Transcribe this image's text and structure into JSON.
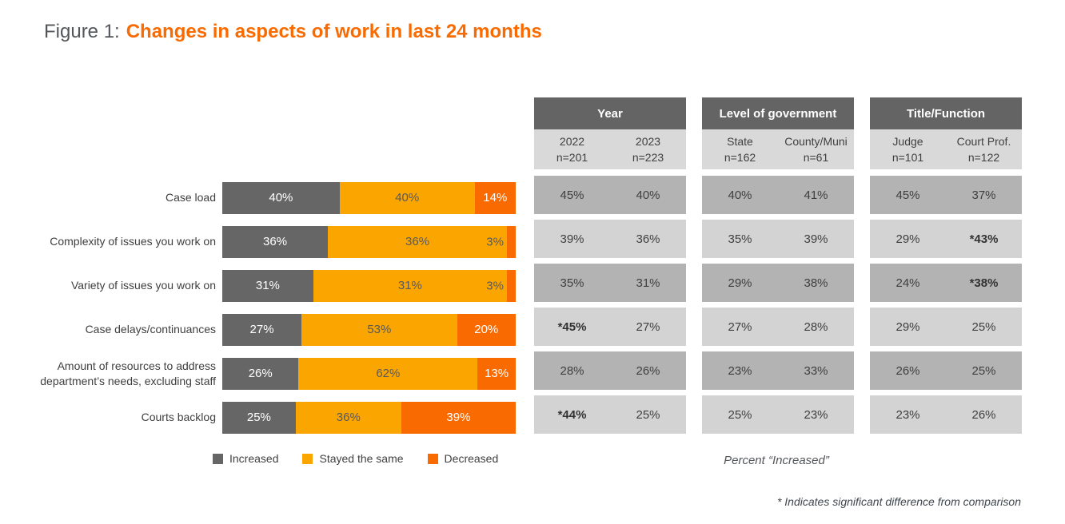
{
  "title": {
    "prefix": "Figure 1:",
    "text": "Changes in aspects of work in last 24 months"
  },
  "colors": {
    "increased": "#666666",
    "stayed": "#FBA600",
    "decreased": "#F96A00",
    "title_orange": "#F96A00",
    "header_band": "#646464",
    "row_dark": "#B3B3B3",
    "row_light": "#D3D3D3",
    "subheader": "#D9D9D9",
    "text_dark": "#3F3F3F",
    "figure_gray": "#53565A",
    "note_color": "#3E464D"
  },
  "chart": {
    "rows": [
      {
        "label": "Case load",
        "inc": "40%",
        "mid": "40%",
        "dec": "14%"
      },
      {
        "label": "Complexity of issues you work on",
        "inc": "36%",
        "mid": "36%",
        "dec": "3%"
      },
      {
        "label": "Variety of issues you work on",
        "inc": "31%",
        "mid": "31%",
        "dec": "3%"
      },
      {
        "label": "Case delays/continuances",
        "inc": "27%",
        "mid": "53%",
        "dec": "20%"
      },
      {
        "label": "Amount of resources to address department’s needs, excluding staff",
        "inc": "26%",
        "mid": "62%",
        "dec": "13%"
      },
      {
        "label": "Courts backlog",
        "inc": "25%",
        "mid": "36%",
        "dec": "39%"
      }
    ]
  },
  "chart_data": {
    "type": "bar",
    "orientation": "horizontal",
    "stacked": true,
    "title": "Figure 1: Changes in aspects of work in last 24 months",
    "value_unit": "%",
    "categories": [
      "Case load",
      "Complexity of issues you work on",
      "Variety of issues you work on",
      "Case delays/continuances",
      "Amount of resources to address department’s needs, excluding staff",
      "Courts backlog"
    ],
    "series": [
      {
        "name": "Increased",
        "color": "#666666",
        "values": [
          40,
          36,
          31,
          27,
          26,
          25
        ]
      },
      {
        "name": "Stayed the same",
        "color": "#FBA600",
        "values": [
          40,
          36,
          31,
          53,
          62,
          36
        ]
      },
      {
        "name": "Decreased",
        "color": "#F96A00",
        "values": [
          14,
          3,
          3,
          20,
          13,
          39
        ]
      }
    ],
    "legend_position": "bottom"
  },
  "tables": [
    {
      "title": "Year",
      "col1": {
        "name": "2022",
        "n": "n=201"
      },
      "col2": {
        "name": "2023",
        "n": "n=223"
      },
      "rows": [
        {
          "c1": "45%",
          "c2": "40%"
        },
        {
          "c1": "39%",
          "c2": "36%"
        },
        {
          "c1": "35%",
          "c2": "31%"
        },
        {
          "c1": "*45%",
          "c2": "27%"
        },
        {
          "c1": "28%",
          "c2": "26%"
        },
        {
          "c1": "*44%",
          "c2": "25%"
        }
      ]
    },
    {
      "title": "Level of government",
      "col1": {
        "name": "State",
        "n": "n=162"
      },
      "col2": {
        "name": "County/Muni",
        "n": "n=61"
      },
      "rows": [
        {
          "c1": "40%",
          "c2": "41%"
        },
        {
          "c1": "35%",
          "c2": "39%"
        },
        {
          "c1": "29%",
          "c2": "38%"
        },
        {
          "c1": "27%",
          "c2": "28%"
        },
        {
          "c1": "23%",
          "c2": "33%"
        },
        {
          "c1": "25%",
          "c2": "23%"
        }
      ]
    },
    {
      "title": "Title/Function",
      "col1": {
        "name": "Judge",
        "n": "n=101"
      },
      "col2": {
        "name": "Court Prof.",
        "n": "n=122"
      },
      "rows": [
        {
          "c1": "45%",
          "c2": "37%"
        },
        {
          "c1": "29%",
          "c2": "*43%"
        },
        {
          "c1": "24%",
          "c2": "*38%"
        },
        {
          "c1": "29%",
          "c2": "25%"
        },
        {
          "c1": "26%",
          "c2": "25%"
        },
        {
          "c1": "23%",
          "c2": "26%"
        }
      ]
    }
  ],
  "legend": {
    "items": [
      "Increased",
      "Stayed the same",
      "Decreased"
    ]
  },
  "notes": {
    "percent_increased": "Percent “Increased”",
    "significance": "* Indicates significant difference from comparison"
  }
}
